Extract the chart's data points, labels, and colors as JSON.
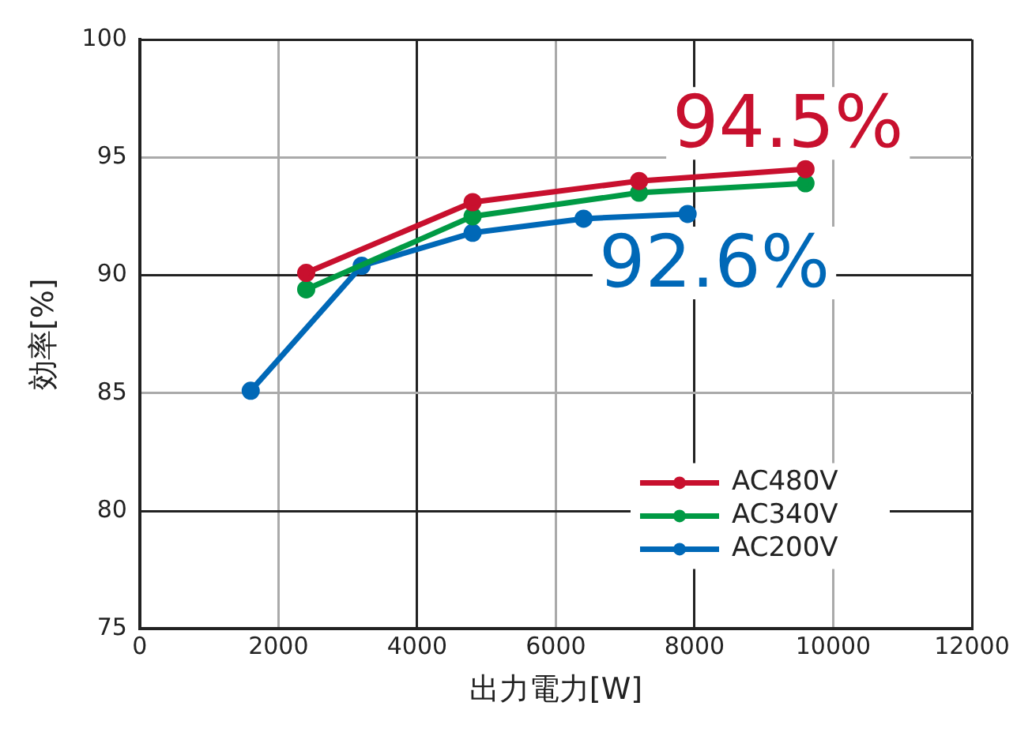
{
  "chart_data": {
    "type": "line",
    "xlabel": "出力電力[W]",
    "ylabel": "効率[%]",
    "xlim": [
      0,
      12000
    ],
    "xticks": [
      0,
      2000,
      4000,
      6000,
      8000,
      10000,
      12000
    ],
    "ylim": [
      75,
      100
    ],
    "yticks": [
      75,
      80,
      85,
      90,
      95,
      100
    ],
    "grid": true,
    "legend": "bottom right",
    "marker": "circle",
    "line_style": "solid",
    "series": [
      {
        "name": "AC480V",
        "color": "#c8102e",
        "x": [
          2400,
          4800,
          7200,
          9600
        ],
        "values": [
          90.1,
          93.1,
          94.0,
          94.5
        ]
      },
      {
        "name": "AC340V",
        "color": "#009a44",
        "x": [
          2400,
          4800,
          7200,
          9600
        ],
        "values": [
          89.4,
          92.5,
          93.5,
          93.9
        ]
      },
      {
        "name": "AC200V",
        "color": "#0068b7",
        "x": [
          1600,
          3200,
          4800,
          6400,
          7900
        ],
        "values": [
          85.1,
          90.4,
          91.8,
          92.4,
          92.6
        ]
      }
    ],
    "annotations": [
      {
        "text": "94.5%",
        "x": 9600,
        "y": 94.5
      },
      {
        "text": "92.6%",
        "x": 7900,
        "y": 92.6
      }
    ]
  }
}
